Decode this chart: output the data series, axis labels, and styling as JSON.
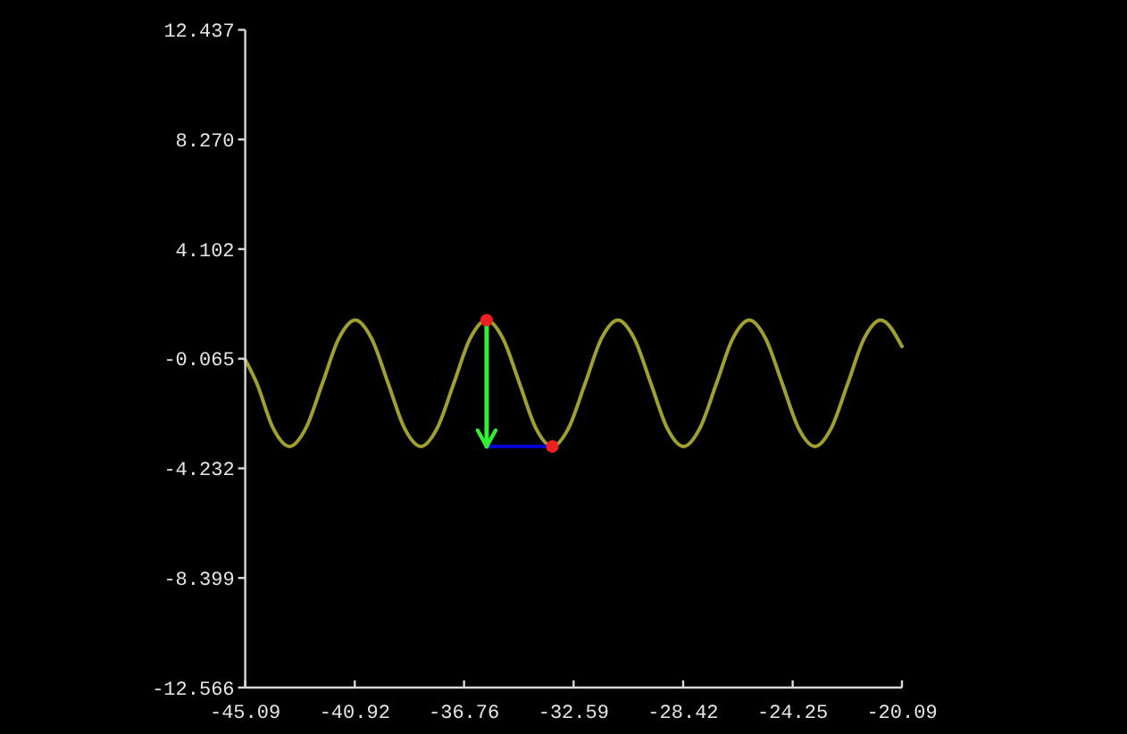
{
  "chart_data": {
    "type": "line",
    "xlim": [
      -45.09,
      -20.09
    ],
    "xticks": [
      -45.09,
      -40.92,
      -36.76,
      -32.59,
      -28.42,
      -24.25,
      -20.09
    ],
    "ylim": [
      -12.566,
      12.437
    ],
    "yticks": [
      12.437,
      {
        "value": 8.27,
        "label": "8.270"
      },
      4.102,
      -0.065,
      -4.232,
      -8.399,
      -12.566
    ],
    "series": [
      {
        "color": "#a0a030",
        "x": [
          -45.09,
          -44.65,
          -44.03,
          -43.4,
          -42.78,
          -42.15,
          -41.53,
          -40.9,
          -40.28,
          -39.65,
          -39.03,
          -38.4,
          -37.78,
          -37.15,
          -36.53,
          -35.9,
          -35.28,
          -34.65,
          -34.03,
          -33.4,
          -32.78,
          -32.15,
          -31.53,
          -30.9,
          -30.28,
          -29.65,
          -29.03,
          -28.4,
          -27.78,
          -27.15,
          -26.53,
          -25.9,
          -25.28,
          -24.65,
          -24.03,
          -23.4,
          -22.78,
          -22.15,
          -21.53,
          -20.9,
          -20.09
        ],
        "values": [
          -0.1,
          -1.0,
          -2.7,
          -3.4,
          -2.7,
          -1.0,
          0.7,
          1.4,
          0.7,
          -1.0,
          -2.7,
          -3.4,
          -2.7,
          -1.0,
          0.7,
          1.4,
          0.7,
          -1.0,
          -2.7,
          -3.4,
          -2.7,
          -1.0,
          0.7,
          1.4,
          0.7,
          -1.0,
          -2.7,
          -3.4,
          -2.7,
          -1.0,
          0.7,
          1.4,
          0.7,
          -1.0,
          -2.7,
          -3.4,
          -2.7,
          -1.0,
          0.7,
          1.4,
          0.4
        ]
      },
      {
        "color": "#0000d0",
        "x": [
          -35.9,
          -33.4
        ],
        "values": [
          -3.4,
          -3.4
        ]
      },
      {
        "color": "#33ee33",
        "x": [
          -35.9,
          -35.9
        ],
        "values": [
          1.4,
          -3.4
        ]
      },
      {
        "type": "scatter",
        "color": "#ee2020",
        "marker": "circle",
        "x": [
          -35.9,
          -33.4
        ],
        "values": [
          1.4,
          -3.4
        ]
      }
    ]
  }
}
